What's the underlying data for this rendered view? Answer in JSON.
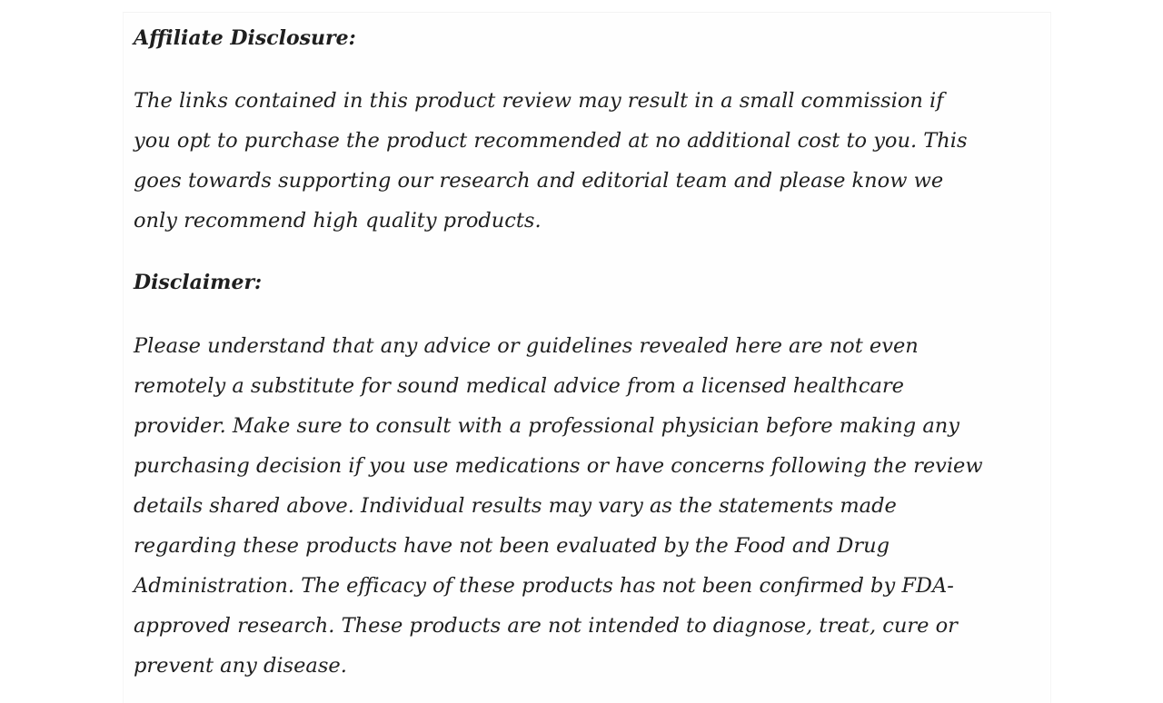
{
  "affiliate": {
    "heading": "Affiliate Disclosure:",
    "lines": [
      "The links contained in this product review may result in a small commission if",
      "you opt to purchase the product recommended at no additional cost to you. This",
      "goes towards supporting our research and editorial team and please know we",
      "only recommend high quality products."
    ]
  },
  "disclaimer": {
    "heading": "Disclaimer:",
    "lines": [
      "Please understand that any advice or guidelines revealed here are not even",
      "remotely a substitute for sound medical advice from a licensed healthcare",
      "provider. Make sure to consult with a professional physician before making any",
      "purchasing decision if you use medications or have concerns following the review",
      "details shared above. Individual results may vary as the statements made",
      "regarding these products have not been evaluated by the Food and Drug",
      "Administration. The efficacy of these products has not been confirmed by FDA-",
      "approved research. These products are not intended to diagnose, treat, cure or",
      "prevent any disease."
    ]
  }
}
